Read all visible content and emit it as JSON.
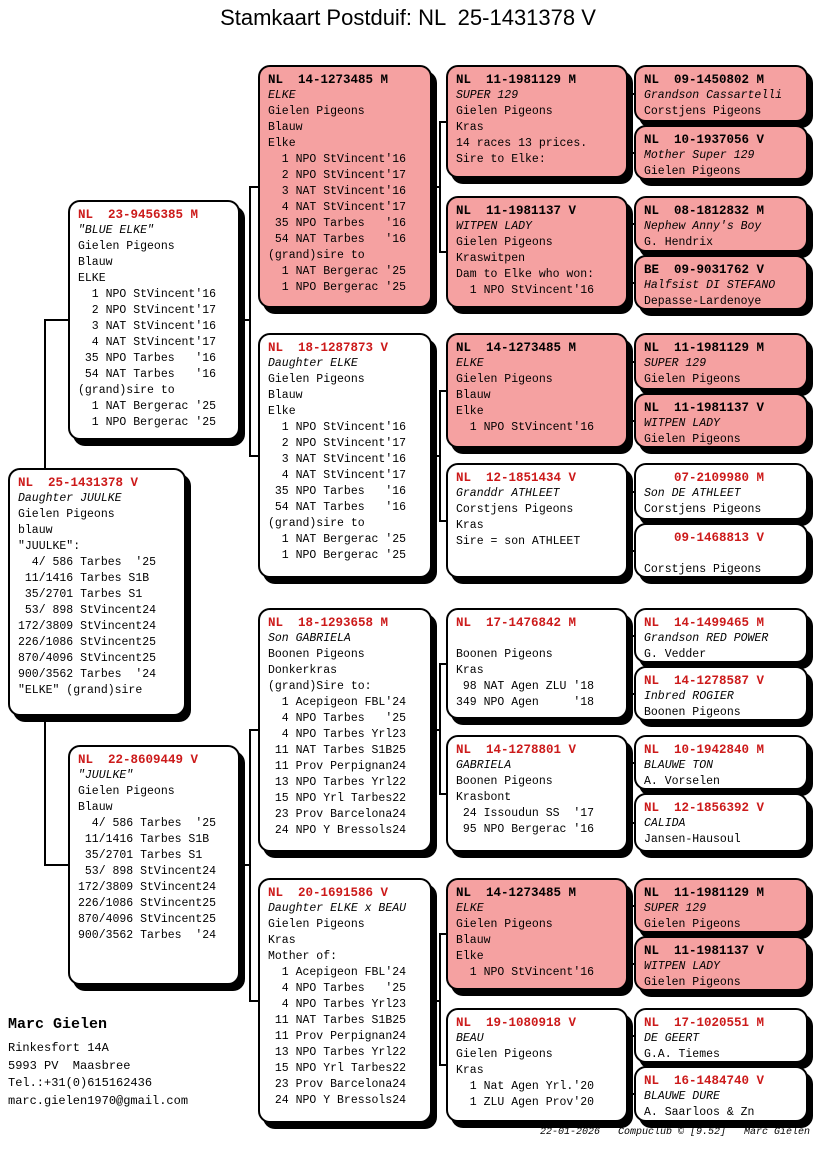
{
  "title": "Stamkaart Postduif: NL  25-1431378 V",
  "colors": {
    "pink": "#F5A1A1",
    "red": "#CC1A1A"
  },
  "owner": {
    "name": "Marc Gielen",
    "lines": [
      "Rinkesfort 14A",
      "5993 PV  Maasbree",
      "Tel.:+31(0)615162436",
      "marc.gielen1970@gmail.com"
    ]
  },
  "footer": "22-01-2026   Compuclub © [9.52]   Marc Gielen",
  "boxes": [
    {
      "slot": "s",
      "pink": false,
      "ring": "NL  25-1431378 V",
      "name": "Daughter JUULKE",
      "lines": [
        "Gielen Pigeons",
        "blauw",
        "\"JUULKE\":",
        "  4/ 586 Tarbes  '25",
        " 11/1416 Tarbes S1B",
        " 35/2701 Tarbes S1",
        " 53/ 898 StVincent24",
        "172/3809 StVincent24",
        "226/1086 StVincent25",
        "870/4096 StVincent25",
        "900/3562 Tarbes  '24",
        "\"ELKE\" (grand)sire"
      ]
    },
    {
      "slot": "f",
      "pink": false,
      "ring": "NL  23-9456385 M",
      "name": "\"BLUE ELKE\"",
      "lines": [
        "Gielen Pigeons",
        "Blauw",
        "ELKE",
        "  1 NPO StVincent'16",
        "  2 NPO StVincent'17",
        "  3 NAT StVincent'16",
        "  4 NAT StVincent'17",
        " 35 NPO Tarbes   '16",
        " 54 NAT Tarbes   '16",
        "(grand)sire to",
        "  1 NAT Bergerac '25",
        "  1 NPO Bergerac '25"
      ]
    },
    {
      "slot": "m",
      "pink": false,
      "ring": "NL  22-8609449 V",
      "name": "\"JUULKE\"",
      "lines": [
        "Gielen Pigeons",
        "Blauw",
        "  4/ 586 Tarbes  '25",
        " 11/1416 Tarbes S1B",
        " 35/2701 Tarbes S1",
        " 53/ 898 StVincent24",
        "172/3809 StVincent24",
        "226/1086 StVincent25",
        "870/4096 StVincent25",
        "900/3562 Tarbes  '24"
      ]
    },
    {
      "slot": "ff",
      "pink": true,
      "ring": "NL  14-1273485 M",
      "name": "ELKE",
      "lines": [
        "Gielen Pigeons",
        "Blauw",
        "Elke",
        "  1 NPO StVincent'16",
        "  2 NPO StVincent'17",
        "  3 NAT StVincent'16",
        "  4 NAT StVincent'17",
        " 35 NPO Tarbes   '16",
        " 54 NAT Tarbes   '16",
        "(grand)sire to",
        "  1 NAT Bergerac '25",
        "  1 NPO Bergerac '25"
      ]
    },
    {
      "slot": "fm",
      "pink": false,
      "ring": "NL  18-1287873 V",
      "name": "Daughter ELKE",
      "lines": [
        "Gielen Pigeons",
        "Blauw",
        "Elke",
        "  1 NPO StVincent'16",
        "  2 NPO StVincent'17",
        "  3 NAT StVincent'16",
        "  4 NAT StVincent'17",
        " 35 NPO Tarbes   '16",
        " 54 NAT Tarbes   '16",
        "(grand)sire to",
        "  1 NAT Bergerac '25",
        "  1 NPO Bergerac '25"
      ]
    },
    {
      "slot": "mf",
      "pink": false,
      "ring": "NL  18-1293658 M",
      "name": "Son GABRIELA",
      "lines": [
        "Boonen Pigeons",
        "Donkerkras",
        "(grand)Sire to:",
        "  1 Acepigeon FBL'24",
        "  4 NPO Tarbes   '25",
        "  4 NPO Tarbes Yrl23",
        " 11 NAT Tarbes S1B25",
        " 11 Prov Perpignan24",
        " 13 NPO Tarbes Yrl22",
        " 15 NPO Yrl Tarbes22",
        " 23 Prov Barcelona24",
        " 24 NPO Y Bressols24"
      ]
    },
    {
      "slot": "mm",
      "pink": false,
      "ring": "NL  20-1691586 V",
      "name": "Daughter ELKE x BEAU",
      "lines": [
        "Gielen Pigeons",
        "Kras",
        "Mother of:",
        "  1 Acepigeon FBL'24",
        "  4 NPO Tarbes   '25",
        "  4 NPO Tarbes Yrl23",
        " 11 NAT Tarbes S1B25",
        " 11 Prov Perpignan24",
        " 13 NPO Tarbes Yrl22",
        " 15 NPO Yrl Tarbes22",
        " 23 Prov Barcelona24",
        " 24 NPO Y Bressols24"
      ]
    },
    {
      "slot": "fff",
      "pink": true,
      "ring": "NL  11-1981129 M",
      "name": "SUPER 129",
      "lines": [
        "Gielen Pigeons",
        "Kras",
        "14 races 13 prices.",
        "Sire to Elke:"
      ]
    },
    {
      "slot": "ffm",
      "pink": true,
      "ring": "NL  11-1981137 V",
      "name": "WITPEN LADY",
      "lines": [
        "Gielen Pigeons",
        "Kraswitpen",
        "Dam to Elke who won:",
        "  1 NPO StVincent'16"
      ]
    },
    {
      "slot": "fmf",
      "pink": true,
      "ring": "NL  14-1273485 M",
      "name": "ELKE",
      "lines": [
        "Gielen Pigeons",
        "Blauw",
        "Elke",
        "  1 NPO StVincent'16"
      ]
    },
    {
      "slot": "fmm",
      "pink": false,
      "ring": "NL  12-1851434 V",
      "name": "Granddr ATHLEET",
      "lines": [
        "Corstjens Pigeons",
        "Kras",
        "Sire = son ATHLEET"
      ]
    },
    {
      "slot": "mff",
      "pink": false,
      "ring": "NL  17-1476842 M",
      "name": "",
      "lines": [
        "Boonen Pigeons",
        "Kras",
        " 98 NAT Agen ZLU '18",
        "349 NPO Agen     '18"
      ]
    },
    {
      "slot": "mfm",
      "pink": false,
      "ring": "NL  14-1278801 V",
      "name": "GABRIELA",
      "lines": [
        "Boonen Pigeons",
        "Krasbont",
        " 24 Issoudun SS  '17",
        " 95 NPO Bergerac '16"
      ]
    },
    {
      "slot": "mmf",
      "pink": true,
      "ring": "NL  14-1273485 M",
      "name": "ELKE",
      "lines": [
        "Gielen Pigeons",
        "Blauw",
        "Elke",
        "  1 NPO StVincent'16"
      ]
    },
    {
      "slot": "mmm",
      "pink": false,
      "ring": "NL  19-1080918 V",
      "name": "BEAU",
      "lines": [
        "Gielen Pigeons",
        "Kras",
        "  1 Nat Agen Yrl.'20",
        "  1 ZLU Agen Prov'20"
      ]
    },
    {
      "slot": "ffff",
      "pink": true,
      "ring": "NL  09-1450802 M",
      "name": "Grandson Cassartelli",
      "lines": [
        "Corstjens Pigeons"
      ]
    },
    {
      "slot": "fffm",
      "pink": true,
      "ring": "NL  10-1937056 V",
      "name": "Mother Super 129",
      "lines": [
        "Gielen Pigeons"
      ]
    },
    {
      "slot": "ffmf",
      "pink": true,
      "ring": "NL  08-1812832 M",
      "name": "Nephew Anny's Boy",
      "lines": [
        "G. Hendrix"
      ]
    },
    {
      "slot": "ffmm",
      "pink": true,
      "ring": "BE  09-9031762 V",
      "name": "Halfsist DI STEFANO",
      "lines": [
        "Depasse-Lardenoye"
      ]
    },
    {
      "slot": "fmff",
      "pink": true,
      "ring": "NL  11-1981129 M",
      "name": "SUPER 129",
      "lines": [
        "Gielen Pigeons"
      ]
    },
    {
      "slot": "fmfm",
      "pink": true,
      "ring": "NL  11-1981137 V",
      "name": "WITPEN LADY",
      "lines": [
        "Gielen Pigeons"
      ]
    },
    {
      "slot": "fmmf",
      "pink": false,
      "ring": "    07-2109980 M",
      "name": "Son DE ATHLEET",
      "lines": [
        "Corstjens Pigeons"
      ]
    },
    {
      "slot": "fmmm",
      "pink": false,
      "ring": "    09-1468813 V",
      "name": "",
      "lines": [
        "Corstjens Pigeons"
      ]
    },
    {
      "slot": "mfff",
      "pink": false,
      "ring": "NL  14-1499465 M",
      "name": "Grandson RED POWER",
      "lines": [
        "G. Vedder"
      ]
    },
    {
      "slot": "mffm",
      "pink": false,
      "ring": "NL  14-1278587 V",
      "name": "Inbred ROGIER",
      "lines": [
        "Boonen Pigeons"
      ]
    },
    {
      "slot": "mfmf",
      "pink": false,
      "ring": "NL  10-1942840 M",
      "name": "BLAUWE TON",
      "lines": [
        "A. Vorselen"
      ]
    },
    {
      "slot": "mfmm",
      "pink": false,
      "ring": "NL  12-1856392 V",
      "name": "CALIDA",
      "lines": [
        "Jansen-Hausoul"
      ]
    },
    {
      "slot": "mmff",
      "pink": true,
      "ring": "NL  11-1981129 M",
      "name": "SUPER 129",
      "lines": [
        "Gielen Pigeons"
      ]
    },
    {
      "slot": "mmfm",
      "pink": true,
      "ring": "NL  11-1981137 V",
      "name": "WITPEN LADY",
      "lines": [
        "Gielen Pigeons"
      ]
    },
    {
      "slot": "mmmf",
      "pink": false,
      "ring": "NL  17-1020551 M",
      "name": "DE GEERT",
      "lines": [
        "G.A. Tiemes"
      ]
    },
    {
      "slot": "mmmm",
      "pink": false,
      "ring": "NL  16-1484740 V",
      "name": "BLAUWE DURE",
      "lines": [
        "A. Saarloos & Zn"
      ]
    }
  ]
}
